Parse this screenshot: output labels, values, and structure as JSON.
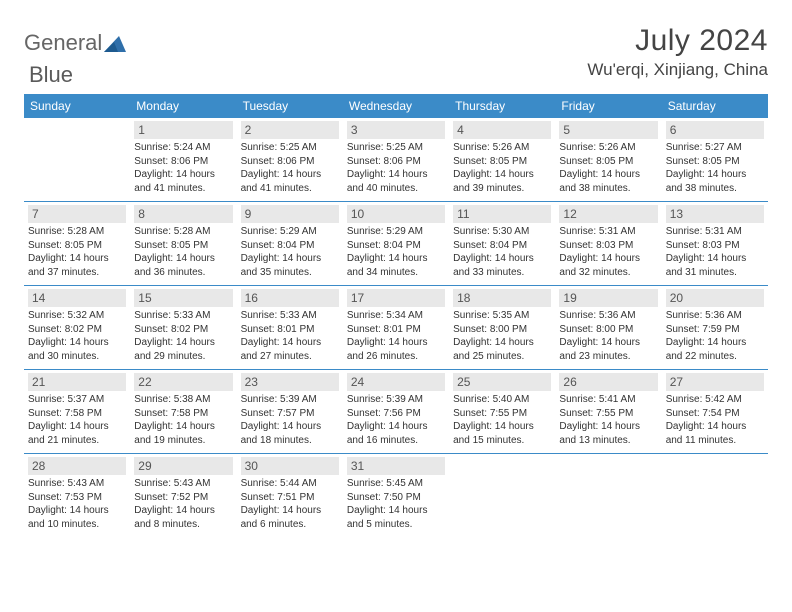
{
  "brand": {
    "part1": "General",
    "part2": "Blue"
  },
  "title": "July 2024",
  "location": "Wu'erqi, Xinjiang, China",
  "colors": {
    "header_bg": "#3b8bc8",
    "header_fg": "#ffffff",
    "daynum_bg": "#e8e8e8",
    "border": "#3b8bc8",
    "text": "#333333",
    "logo_accent": "#2f6faa"
  },
  "weekdays": [
    "Sunday",
    "Monday",
    "Tuesday",
    "Wednesday",
    "Thursday",
    "Friday",
    "Saturday"
  ],
  "weeks": [
    [
      null,
      {
        "n": "1",
        "sunrise": "5:24 AM",
        "sunset": "8:06 PM",
        "daylight": "14 hours and 41 minutes."
      },
      {
        "n": "2",
        "sunrise": "5:25 AM",
        "sunset": "8:06 PM",
        "daylight": "14 hours and 41 minutes."
      },
      {
        "n": "3",
        "sunrise": "5:25 AM",
        "sunset": "8:06 PM",
        "daylight": "14 hours and 40 minutes."
      },
      {
        "n": "4",
        "sunrise": "5:26 AM",
        "sunset": "8:05 PM",
        "daylight": "14 hours and 39 minutes."
      },
      {
        "n": "5",
        "sunrise": "5:26 AM",
        "sunset": "8:05 PM",
        "daylight": "14 hours and 38 minutes."
      },
      {
        "n": "6",
        "sunrise": "5:27 AM",
        "sunset": "8:05 PM",
        "daylight": "14 hours and 38 minutes."
      }
    ],
    [
      {
        "n": "7",
        "sunrise": "5:28 AM",
        "sunset": "8:05 PM",
        "daylight": "14 hours and 37 minutes."
      },
      {
        "n": "8",
        "sunrise": "5:28 AM",
        "sunset": "8:05 PM",
        "daylight": "14 hours and 36 minutes."
      },
      {
        "n": "9",
        "sunrise": "5:29 AM",
        "sunset": "8:04 PM",
        "daylight": "14 hours and 35 minutes."
      },
      {
        "n": "10",
        "sunrise": "5:29 AM",
        "sunset": "8:04 PM",
        "daylight": "14 hours and 34 minutes."
      },
      {
        "n": "11",
        "sunrise": "5:30 AM",
        "sunset": "8:04 PM",
        "daylight": "14 hours and 33 minutes."
      },
      {
        "n": "12",
        "sunrise": "5:31 AM",
        "sunset": "8:03 PM",
        "daylight": "14 hours and 32 minutes."
      },
      {
        "n": "13",
        "sunrise": "5:31 AM",
        "sunset": "8:03 PM",
        "daylight": "14 hours and 31 minutes."
      }
    ],
    [
      {
        "n": "14",
        "sunrise": "5:32 AM",
        "sunset": "8:02 PM",
        "daylight": "14 hours and 30 minutes."
      },
      {
        "n": "15",
        "sunrise": "5:33 AM",
        "sunset": "8:02 PM",
        "daylight": "14 hours and 29 minutes."
      },
      {
        "n": "16",
        "sunrise": "5:33 AM",
        "sunset": "8:01 PM",
        "daylight": "14 hours and 27 minutes."
      },
      {
        "n": "17",
        "sunrise": "5:34 AM",
        "sunset": "8:01 PM",
        "daylight": "14 hours and 26 minutes."
      },
      {
        "n": "18",
        "sunrise": "5:35 AM",
        "sunset": "8:00 PM",
        "daylight": "14 hours and 25 minutes."
      },
      {
        "n": "19",
        "sunrise": "5:36 AM",
        "sunset": "8:00 PM",
        "daylight": "14 hours and 23 minutes."
      },
      {
        "n": "20",
        "sunrise": "5:36 AM",
        "sunset": "7:59 PM",
        "daylight": "14 hours and 22 minutes."
      }
    ],
    [
      {
        "n": "21",
        "sunrise": "5:37 AM",
        "sunset": "7:58 PM",
        "daylight": "14 hours and 21 minutes."
      },
      {
        "n": "22",
        "sunrise": "5:38 AM",
        "sunset": "7:58 PM",
        "daylight": "14 hours and 19 minutes."
      },
      {
        "n": "23",
        "sunrise": "5:39 AM",
        "sunset": "7:57 PM",
        "daylight": "14 hours and 18 minutes."
      },
      {
        "n": "24",
        "sunrise": "5:39 AM",
        "sunset": "7:56 PM",
        "daylight": "14 hours and 16 minutes."
      },
      {
        "n": "25",
        "sunrise": "5:40 AM",
        "sunset": "7:55 PM",
        "daylight": "14 hours and 15 minutes."
      },
      {
        "n": "26",
        "sunrise": "5:41 AM",
        "sunset": "7:55 PM",
        "daylight": "14 hours and 13 minutes."
      },
      {
        "n": "27",
        "sunrise": "5:42 AM",
        "sunset": "7:54 PM",
        "daylight": "14 hours and 11 minutes."
      }
    ],
    [
      {
        "n": "28",
        "sunrise": "5:43 AM",
        "sunset": "7:53 PM",
        "daylight": "14 hours and 10 minutes."
      },
      {
        "n": "29",
        "sunrise": "5:43 AM",
        "sunset": "7:52 PM",
        "daylight": "14 hours and 8 minutes."
      },
      {
        "n": "30",
        "sunrise": "5:44 AM",
        "sunset": "7:51 PM",
        "daylight": "14 hours and 6 minutes."
      },
      {
        "n": "31",
        "sunrise": "5:45 AM",
        "sunset": "7:50 PM",
        "daylight": "14 hours and 5 minutes."
      },
      null,
      null,
      null
    ]
  ],
  "labels": {
    "sunrise": "Sunrise:",
    "sunset": "Sunset:",
    "daylight": "Daylight:"
  }
}
